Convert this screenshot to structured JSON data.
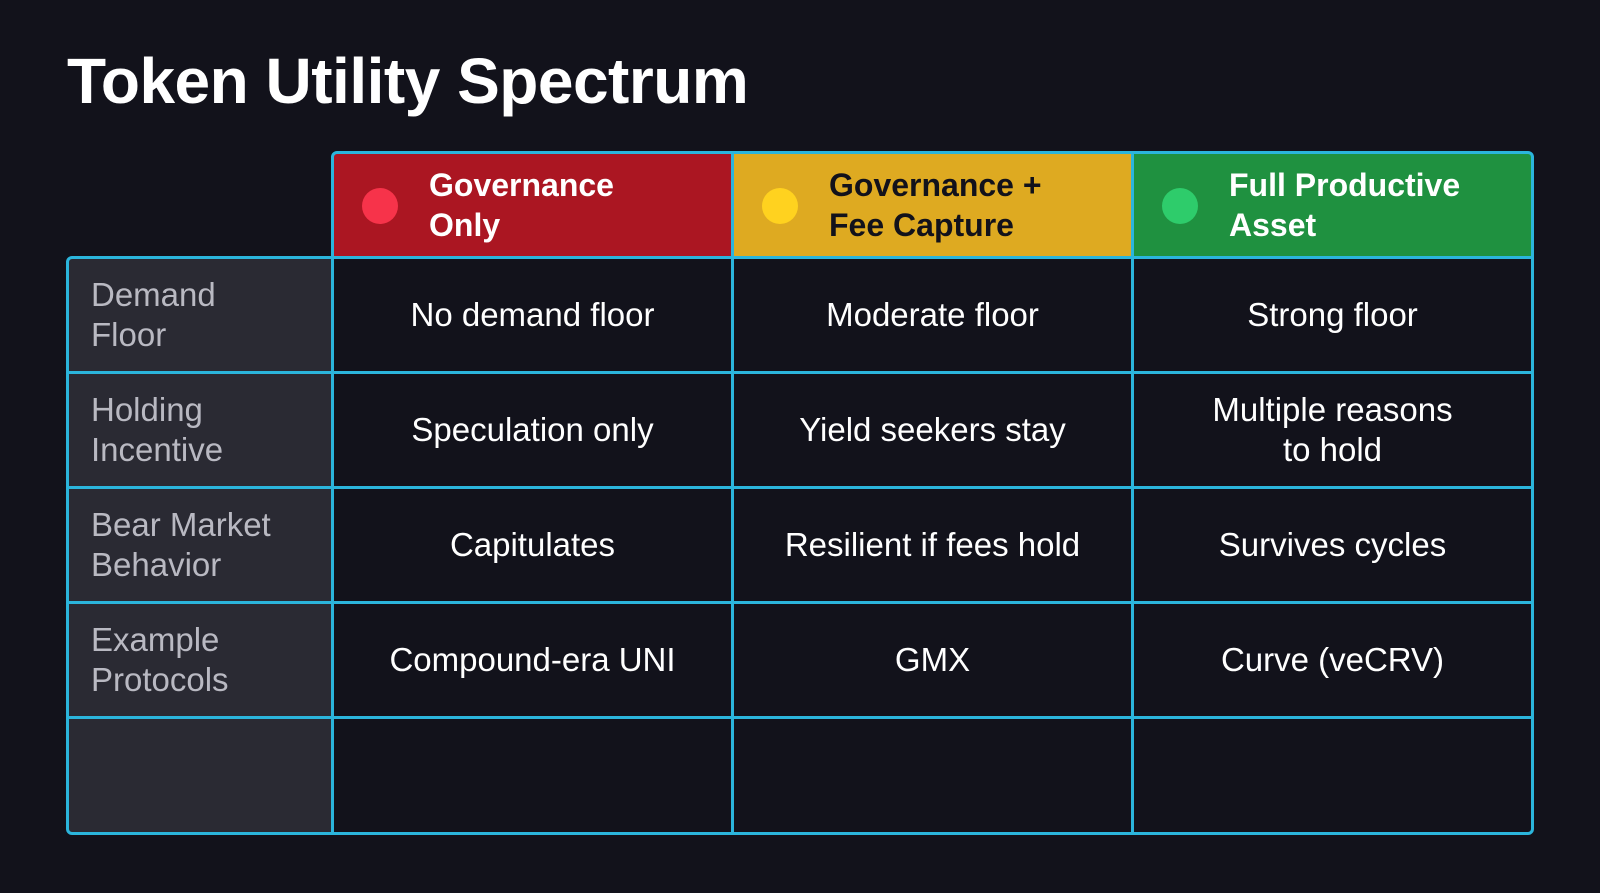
{
  "title": "Token Utility Spectrum",
  "colors": {
    "background": "#12121b",
    "border": "#2bb5dc",
    "governance_only": "#ab1622",
    "governance_fee": "#deaa21",
    "full_productive": "#1f9140",
    "dot_red": "#f7334a",
    "dot_yellow": "#ffd21f",
    "dot_green": "#2ecc6b",
    "row_header": "#2a2a33"
  },
  "columns": [
    {
      "label": "Governance\nOnly",
      "status_icon": "red-dot"
    },
    {
      "label": "Governance +\nFee Capture",
      "status_icon": "yellow-dot"
    },
    {
      "label": "Full Productive\nAsset",
      "status_icon": "green-dot"
    }
  ],
  "rows": [
    {
      "label": "Demand\nFloor",
      "cells": [
        "No demand floor",
        "Moderate floor",
        "Strong floor"
      ]
    },
    {
      "label": "Holding\nIncentive",
      "cells": [
        "Speculation only",
        "Yield seekers stay",
        "Multiple reasons\nto hold"
      ]
    },
    {
      "label": "Bear Market\nBehavior",
      "cells": [
        "Capitulates",
        "Resilient if fees hold",
        "Survives cycles"
      ]
    },
    {
      "label": "Example\nProtocols",
      "cells": [
        "Compound-era UNI",
        "GMX",
        "Curve (veCRV)"
      ]
    },
    {
      "label": "",
      "cells": [
        "",
        "",
        ""
      ]
    }
  ]
}
